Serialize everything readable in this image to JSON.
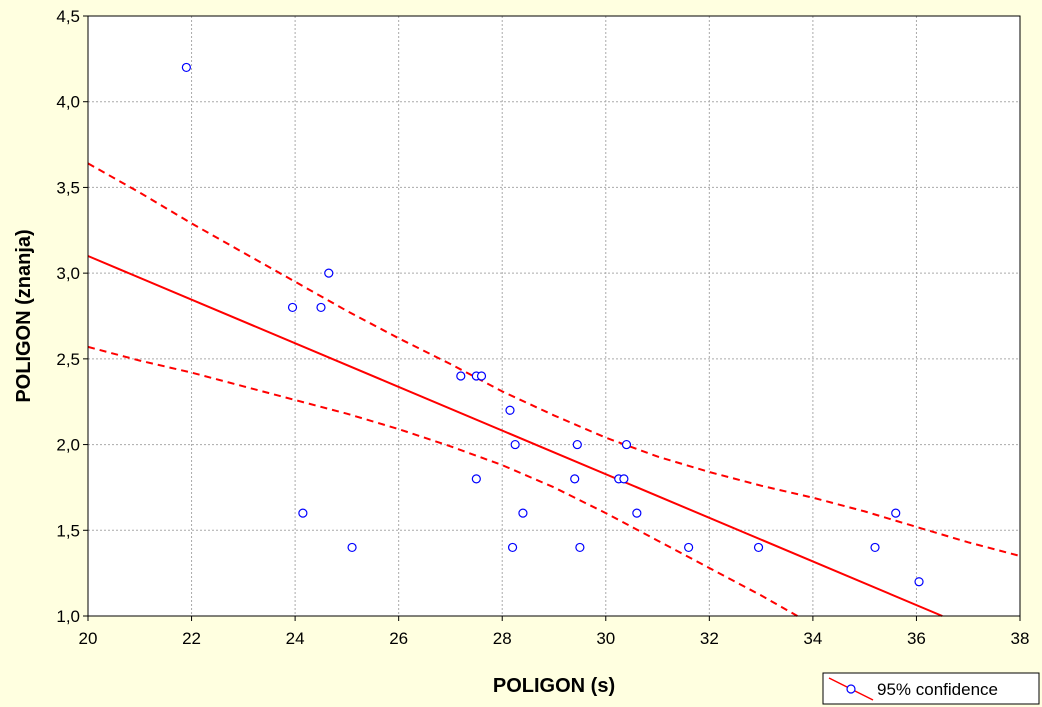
{
  "chart_data": {
    "type": "scatter",
    "title": "",
    "xlabel": "POLIGON (s)",
    "ylabel": "POLIGON (znanja)",
    "xlim": [
      20,
      38
    ],
    "ylim": [
      1.0,
      4.5
    ],
    "x_ticks": [
      20,
      22,
      24,
      26,
      28,
      30,
      32,
      34,
      36,
      38
    ],
    "x_tick_labels": [
      "20",
      "22",
      "24",
      "26",
      "28",
      "30",
      "32",
      "34",
      "36",
      "38"
    ],
    "y_ticks": [
      1.0,
      1.5,
      2.0,
      2.5,
      3.0,
      3.5,
      4.0,
      4.5
    ],
    "y_tick_labels": [
      "1,0",
      "1,5",
      "2,0",
      "2,5",
      "3,0",
      "3,5",
      "4,0",
      "4,5"
    ],
    "grid": true,
    "legend_position": "bottom-right",
    "legend_label": "95% confidence",
    "colors": {
      "points": "#0000ff",
      "lines": "#ff0000",
      "background": "#ffffe0",
      "plot_area": "#ffffff",
      "grid": "#aaaaaa"
    },
    "points": [
      {
        "x": 21.9,
        "y": 4.2
      },
      {
        "x": 23.95,
        "y": 2.8
      },
      {
        "x": 24.15,
        "y": 1.6
      },
      {
        "x": 24.5,
        "y": 2.8
      },
      {
        "x": 24.65,
        "y": 3.0
      },
      {
        "x": 25.1,
        "y": 1.4
      },
      {
        "x": 27.2,
        "y": 2.4
      },
      {
        "x": 27.5,
        "y": 2.4
      },
      {
        "x": 27.5,
        "y": 1.8
      },
      {
        "x": 27.6,
        "y": 2.4
      },
      {
        "x": 28.15,
        "y": 2.2
      },
      {
        "x": 28.2,
        "y": 1.4
      },
      {
        "x": 28.25,
        "y": 2.0
      },
      {
        "x": 28.4,
        "y": 1.6
      },
      {
        "x": 29.4,
        "y": 1.8
      },
      {
        "x": 29.45,
        "y": 2.0
      },
      {
        "x": 29.5,
        "y": 1.4
      },
      {
        "x": 30.25,
        "y": 1.8
      },
      {
        "x": 30.35,
        "y": 1.8
      },
      {
        "x": 30.4,
        "y": 2.0
      },
      {
        "x": 30.6,
        "y": 1.6
      },
      {
        "x": 31.6,
        "y": 1.4
      },
      {
        "x": 32.95,
        "y": 1.4
      },
      {
        "x": 35.2,
        "y": 1.4
      },
      {
        "x": 35.6,
        "y": 1.6
      },
      {
        "x": 36.05,
        "y": 1.2
      }
    ],
    "regression_line": {
      "x": [
        20,
        36.5
      ],
      "y": [
        3.1,
        1.0
      ]
    },
    "upper_confidence": {
      "x": [
        20,
        21,
        22,
        23,
        24,
        25,
        26,
        27,
        28,
        29,
        30,
        31,
        32,
        33,
        34,
        35,
        36,
        37,
        38
      ],
      "y": [
        3.64,
        3.47,
        3.29,
        3.12,
        2.95,
        2.78,
        2.62,
        2.47,
        2.31,
        2.17,
        2.04,
        1.93,
        1.84,
        1.76,
        1.69,
        1.61,
        1.52,
        1.43,
        1.35
      ]
    },
    "lower_confidence": {
      "x": [
        20,
        21,
        22,
        23,
        24,
        25,
        26,
        27,
        28,
        29,
        30,
        31,
        32,
        33,
        33.7
      ],
      "y": [
        2.57,
        2.49,
        2.42,
        2.34,
        2.26,
        2.18,
        2.09,
        1.99,
        1.88,
        1.75,
        1.6,
        1.44,
        1.28,
        1.12,
        1.0
      ]
    }
  }
}
